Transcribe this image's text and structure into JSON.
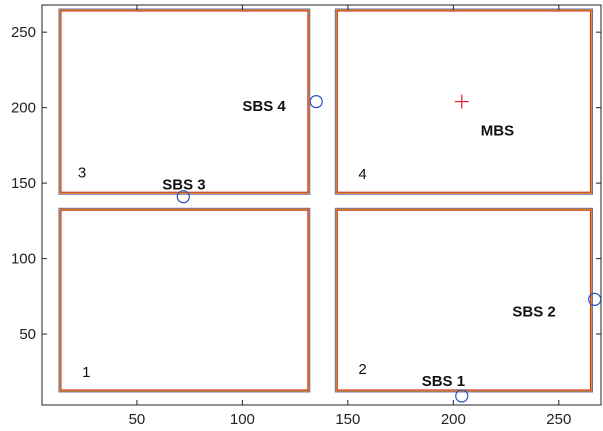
{
  "chart_data": {
    "type": "scatter",
    "title": "",
    "xlabel": "",
    "ylabel": "",
    "xlim": [
      5,
      270
    ],
    "ylim": [
      3,
      268
    ],
    "xticks": [
      50,
      100,
      150,
      200,
      250
    ],
    "yticks": [
      50,
      100,
      150,
      200,
      250
    ],
    "grid": false,
    "rooms": [
      {
        "label": "1",
        "x0": 14,
        "x1": 131,
        "y0": 13,
        "y1": 132,
        "label_x": 24,
        "label_y": 25
      },
      {
        "label": "2",
        "x0": 145,
        "x1": 265,
        "y0": 13,
        "y1": 132,
        "label_x": 155,
        "label_y": 27
      },
      {
        "label": "3",
        "x0": 14,
        "x1": 131,
        "y0": 144,
        "y1": 264,
        "label_x": 22,
        "label_y": 157
      },
      {
        "label": "4",
        "x0": 145,
        "x1": 265,
        "y0": 144,
        "y1": 264,
        "label_x": 155,
        "label_y": 156
      }
    ],
    "stations": [
      {
        "label": "SBS 1",
        "x": 204,
        "y": 9,
        "marker": "o",
        "label_x": 185,
        "label_y": 19
      },
      {
        "label": "SBS 2",
        "x": 267,
        "y": 73,
        "marker": "o",
        "label_x": 228,
        "label_y": 65
      },
      {
        "label": "SBS 3",
        "x": 72,
        "y": 141,
        "marker": "o",
        "label_x": 62,
        "label_y": 149
      },
      {
        "label": "SBS 4",
        "x": 135,
        "y": 204,
        "marker": "o",
        "label_x": 100,
        "label_y": 201
      },
      {
        "label": "MBS",
        "x": 204,
        "y": 204,
        "marker": "+",
        "label_x": 213,
        "label_y": 185
      }
    ],
    "colors": {
      "axis": "#222222",
      "room_outer": "#e08a2c",
      "room_inner": "#c0392b",
      "room_edge": "#4a64b0",
      "sbs_marker": "#2a52be",
      "mbs_marker": "#e8212e"
    }
  }
}
